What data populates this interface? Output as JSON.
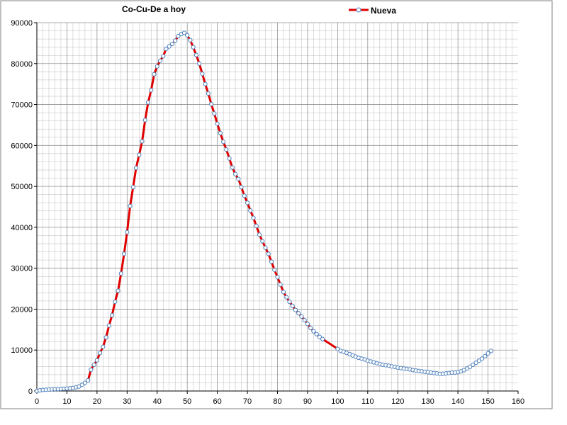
{
  "chart_data": {
    "type": "line",
    "title": "Co-Cu-De a hoy",
    "xlabel": "",
    "ylabel": "",
    "xlim": [
      0,
      160
    ],
    "ylim": [
      0,
      90000
    ],
    "x_ticks": [
      0,
      10,
      20,
      30,
      40,
      50,
      60,
      70,
      80,
      90,
      100,
      110,
      120,
      130,
      140,
      150,
      160
    ],
    "y_ticks": [
      0,
      10000,
      20000,
      30000,
      40000,
      50000,
      60000,
      70000,
      80000,
      90000
    ],
    "grid": "on",
    "legend_position": "top",
    "legend": [
      "Nueva"
    ],
    "colors": {
      "line": "#e00000",
      "marker_stroke": "#4f81bd",
      "marker_fill": "#ffffff",
      "grid": "#888888",
      "axis": "#000000"
    },
    "series": [
      {
        "name": "Nueva",
        "points": [
          [
            0,
            0
          ],
          [
            1,
            150
          ],
          [
            2,
            250
          ],
          [
            3,
            300
          ],
          [
            4,
            350
          ],
          [
            5,
            400
          ],
          [
            6,
            450
          ],
          [
            7,
            450
          ],
          [
            8,
            500
          ],
          [
            9,
            550
          ],
          [
            10,
            600
          ],
          [
            11,
            650
          ],
          [
            12,
            750
          ],
          [
            13,
            900
          ],
          [
            14,
            1100
          ],
          [
            15,
            1500
          ],
          [
            16,
            2000
          ],
          [
            17,
            2600
          ],
          [
            18,
            5200
          ],
          [
            19,
            6400
          ],
          [
            20,
            7500
          ],
          [
            21,
            9300
          ],
          [
            22,
            10800
          ],
          [
            23,
            13100
          ],
          [
            24,
            16000
          ],
          [
            25,
            18500
          ],
          [
            26,
            21800
          ],
          [
            27,
            24500
          ],
          [
            28,
            28700
          ],
          [
            29,
            33500
          ],
          [
            30,
            38800
          ],
          [
            31,
            45200
          ],
          [
            32,
            49800
          ],
          [
            33,
            54500
          ],
          [
            34,
            57700
          ],
          [
            35,
            61000
          ],
          [
            36,
            66200
          ],
          [
            37,
            70500
          ],
          [
            38,
            73500
          ],
          [
            39,
            77400
          ],
          [
            40,
            79300
          ],
          [
            41,
            80700
          ],
          [
            42,
            81800
          ],
          [
            43,
            83600
          ],
          [
            44,
            84200
          ],
          [
            45,
            84800
          ],
          [
            46,
            85600
          ],
          [
            47,
            86700
          ],
          [
            48,
            87200
          ],
          [
            49,
            87500
          ],
          [
            50,
            86900
          ],
          [
            51,
            85700
          ],
          [
            52,
            84000
          ],
          [
            53,
            82100
          ],
          [
            54,
            80000
          ],
          [
            55,
            77500
          ],
          [
            56,
            75000
          ],
          [
            57,
            72700
          ],
          [
            58,
            70100
          ],
          [
            59,
            67800
          ],
          [
            60,
            65300
          ],
          [
            61,
            63000
          ],
          [
            62,
            60900
          ],
          [
            63,
            59000
          ],
          [
            64,
            56800
          ],
          [
            65,
            54600
          ],
          [
            66,
            53000
          ],
          [
            67,
            51800
          ],
          [
            68,
            49800
          ],
          [
            69,
            47700
          ],
          [
            70,
            46000
          ],
          [
            71,
            44100
          ],
          [
            72,
            42300
          ],
          [
            73,
            40300
          ],
          [
            74,
            38200
          ],
          [
            75,
            36600
          ],
          [
            76,
            35000
          ],
          [
            77,
            33500
          ],
          [
            78,
            31600
          ],
          [
            79,
            29600
          ],
          [
            80,
            27800
          ],
          [
            81,
            26000
          ],
          [
            82,
            24200
          ],
          [
            83,
            22900
          ],
          [
            84,
            21800
          ],
          [
            85,
            20800
          ],
          [
            86,
            19800
          ],
          [
            87,
            19000
          ],
          [
            88,
            18200
          ],
          [
            89,
            17300
          ],
          [
            90,
            16400
          ],
          [
            91,
            15400
          ],
          [
            92,
            14600
          ],
          [
            93,
            13900
          ],
          [
            94,
            13200
          ],
          [
            95,
            12700
          ],
          [
            100,
            10300
          ],
          [
            101,
            9800
          ],
          [
            102,
            9600
          ],
          [
            103,
            9300
          ],
          [
            104,
            9000
          ],
          [
            105,
            8700
          ],
          [
            106,
            8400
          ],
          [
            107,
            8100
          ],
          [
            108,
            7900
          ],
          [
            109,
            7700
          ],
          [
            110,
            7400
          ],
          [
            111,
            7200
          ],
          [
            112,
            7000
          ],
          [
            113,
            6800
          ],
          [
            114,
            6600
          ],
          [
            115,
            6400
          ],
          [
            116,
            6300
          ],
          [
            117,
            6200
          ],
          [
            118,
            6000
          ],
          [
            119,
            5900
          ],
          [
            120,
            5700
          ],
          [
            121,
            5600
          ],
          [
            122,
            5500
          ],
          [
            123,
            5400
          ],
          [
            124,
            5300
          ],
          [
            125,
            5100
          ],
          [
            126,
            5000
          ],
          [
            127,
            4900
          ],
          [
            128,
            4800
          ],
          [
            129,
            4700
          ],
          [
            130,
            4600
          ],
          [
            131,
            4500
          ],
          [
            132,
            4400
          ],
          [
            133,
            4300
          ],
          [
            134,
            4200
          ],
          [
            135,
            4200
          ],
          [
            136,
            4300
          ],
          [
            137,
            4400
          ],
          [
            138,
            4500
          ],
          [
            139,
            4500
          ],
          [
            140,
            4600
          ],
          [
            141,
            4800
          ],
          [
            142,
            5100
          ],
          [
            143,
            5500
          ],
          [
            144,
            5900
          ],
          [
            145,
            6400
          ],
          [
            146,
            6900
          ],
          [
            147,
            7400
          ],
          [
            148,
            7900
          ],
          [
            149,
            8500
          ],
          [
            150,
            9200
          ],
          [
            151,
            9800
          ]
        ],
        "red_segments": [
          [
            17,
            100
          ]
        ]
      }
    ]
  }
}
